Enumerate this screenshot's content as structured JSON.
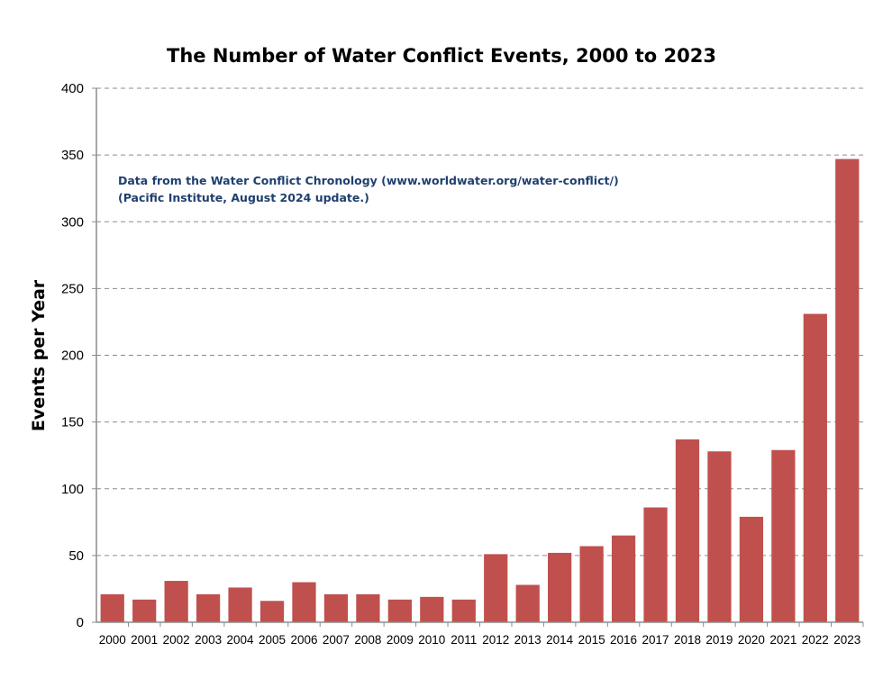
{
  "chart_data": {
    "type": "bar",
    "title": "The Number of Water Conflict Events, 2000 to 2023",
    "xlabel": "",
    "ylabel": "Events per Year",
    "ylim": [
      0,
      400
    ],
    "yticks": [
      "0",
      "50",
      "100",
      "150",
      "200",
      "250",
      "300",
      "350",
      "400"
    ],
    "grid": true,
    "bar_color": "#c0504d",
    "annotation": [
      "Data from the Water Conflict Chronology (www.worldwater.org/water-conflict/)",
      "(Pacific Institute, August 2024 update.)"
    ],
    "categories": [
      "2000",
      "2001",
      "2002",
      "2003",
      "2004",
      "2005",
      "2006",
      "2007",
      "2008",
      "2009",
      "2010",
      "2011",
      "2012",
      "2013",
      "2014",
      "2015",
      "2016",
      "2017",
      "2018",
      "2019",
      "2020",
      "2021",
      "2022",
      "2023"
    ],
    "values": [
      21,
      17,
      31,
      21,
      26,
      16,
      30,
      21,
      21,
      17,
      19,
      17,
      51,
      28,
      52,
      57,
      65,
      86,
      137,
      128,
      79,
      129,
      231,
      347
    ]
  }
}
